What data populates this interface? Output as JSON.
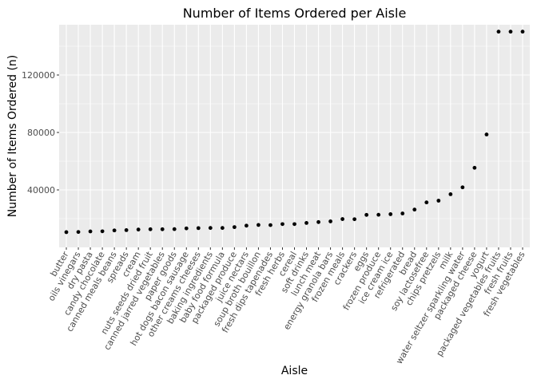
{
  "chart_data": {
    "type": "scatter",
    "title": "Number of Items Ordered per Aisle",
    "xlabel": "Aisle",
    "ylabel": "Number of Items Ordered (n)",
    "ylim": [
      0,
      155000
    ],
    "yticks": [
      40000,
      80000,
      120000
    ],
    "ytick_labels": [
      "40000",
      "80000",
      "120000"
    ],
    "grid": true,
    "point_color": "#000000",
    "panel_color": "#EBEBEB",
    "categories": [
      "butter",
      "oils vinegars",
      "dry pasta",
      "candy chocolate",
      "canned meals beans",
      "spreads",
      "cream",
      "nuts seeds dried fruit",
      "canned jarred vegetables",
      "paper goods",
      "hot dogs bacon sausage",
      "other creams cheeses",
      "baking ingredients",
      "baby food formula",
      "packaged produce",
      "juice nectars",
      "soup broth bouillon",
      "fresh dips tapenades",
      "fresh herbs",
      "cereal",
      "soft drinks",
      "lunch meat",
      "energy granola bars",
      "frozen meals",
      "crackers",
      "eggs",
      "frozen produce",
      "ice cream ice",
      "refrigerated",
      "bread",
      "soy lactosefree",
      "chips pretzels",
      "milk",
      "water seltzer sparkling water",
      "packaged cheese",
      "yogurt",
      "packaged vegetables fruits",
      "fresh fruits",
      "fresh vegetables"
    ],
    "values": [
      10600,
      10700,
      11100,
      11200,
      11800,
      12000,
      12400,
      12600,
      12600,
      12700,
      13200,
      13400,
      13500,
      13500,
      14100,
      15100,
      15600,
      15500,
      16200,
      16200,
      17000,
      17600,
      18100,
      19700,
      19600,
      22600,
      22700,
      23100,
      23600,
      26300,
      31300,
      32500,
      37000,
      41800,
      55400,
      78600,
      150200,
      150200,
      150200
    ]
  }
}
